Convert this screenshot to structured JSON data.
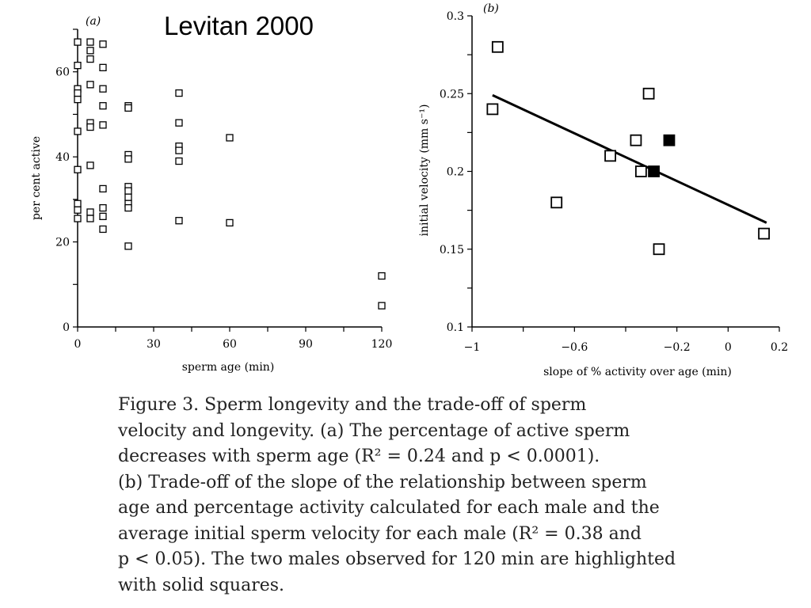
{
  "slide_title": "Levitan 2000",
  "caption": {
    "lines": [
      "Figure 3.  Sperm longevity and the trade-off of sperm",
      "velocity and longevity. (a) The percentage of active sperm",
      "decreases with sperm age (R² = 0.24 and p < 0.0001).",
      "(b) Trade-off of the slope of the relationship between sperm",
      "age and percentage activity calculated for each male and the",
      "average initial sperm velocity for each male (R² = 0.38 and",
      "p < 0.05). The two males observed for 120 min are highlighted",
      "with solid squares."
    ]
  },
  "chart_data": [
    {
      "type": "scatter",
      "panel_label": "(a)",
      "xlabel": "sperm age (min)",
      "ylabel": "per cent active",
      "xlim": [
        0,
        120
      ],
      "ylim": [
        0,
        70
      ],
      "xticks": [
        0,
        30,
        60,
        90,
        120
      ],
      "yticks": [
        0,
        20,
        40,
        60
      ],
      "grid": false,
      "marker": "open-square",
      "points": [
        [
          0,
          67
        ],
        [
          0,
          61.5
        ],
        [
          0,
          56
        ],
        [
          0,
          55
        ],
        [
          0,
          53.5
        ],
        [
          0,
          46
        ],
        [
          0,
          37
        ],
        [
          0,
          29
        ],
        [
          0,
          27.5
        ],
        [
          0,
          25.5
        ],
        [
          5,
          67
        ],
        [
          5,
          65
        ],
        [
          5,
          63
        ],
        [
          5,
          57
        ],
        [
          5,
          48
        ],
        [
          5,
          47
        ],
        [
          5,
          38
        ],
        [
          5,
          27
        ],
        [
          5,
          25.5
        ],
        [
          10,
          66.5
        ],
        [
          10,
          61
        ],
        [
          10,
          56
        ],
        [
          10,
          52
        ],
        [
          10,
          47.5
        ],
        [
          10,
          32.5
        ],
        [
          10,
          28
        ],
        [
          10,
          26
        ],
        [
          10,
          23
        ],
        [
          20,
          52
        ],
        [
          20,
          51.5
        ],
        [
          20,
          40.5
        ],
        [
          20,
          39.5
        ],
        [
          20,
          33
        ],
        [
          20,
          32
        ],
        [
          20,
          30.5
        ],
        [
          20,
          29
        ],
        [
          20,
          28
        ],
        [
          20,
          19
        ],
        [
          40,
          55
        ],
        [
          40,
          48
        ],
        [
          40,
          42.5
        ],
        [
          40,
          41.5
        ],
        [
          40,
          39
        ],
        [
          40,
          25
        ],
        [
          60,
          44.5
        ],
        [
          60,
          24.5
        ],
        [
          120,
          12
        ],
        [
          120,
          5
        ]
      ]
    },
    {
      "type": "scatter",
      "panel_label": "(b)",
      "xlabel": "slope of % activity over age (min)",
      "ylabel": "initial velocity (mm s⁻¹)",
      "xlim": [
        -1,
        0.2
      ],
      "ylim": [
        0.1,
        0.3
      ],
      "xticks": [
        -1,
        -0.6,
        -0.2,
        0,
        0.2
      ],
      "xtick_labels": [
        "−1",
        "−0.6",
        "−0.2",
        "0",
        "0.2"
      ],
      "yticks": [
        0.1,
        0.15,
        0.2,
        0.25,
        0.3
      ],
      "ytick_labels": [
        "0.1",
        "0.15",
        "0.2",
        "0.25",
        "0.3"
      ],
      "grid": false,
      "series": [
        {
          "marker": "open-square",
          "points": [
            [
              -0.92,
              0.24
            ],
            [
              -0.9,
              0.28
            ],
            [
              -0.67,
              0.18
            ],
            [
              -0.46,
              0.21
            ],
            [
              -0.36,
              0.22
            ],
            [
              -0.34,
              0.2
            ],
            [
              -0.31,
              0.25
            ],
            [
              -0.27,
              0.15
            ],
            [
              0.14,
              0.16
            ]
          ]
        },
        {
          "marker": "solid-square",
          "highlight": true,
          "points": [
            [
              -0.29,
              0.2
            ],
            [
              -0.23,
              0.22
            ]
          ]
        }
      ],
      "fit_line": {
        "x": [
          -0.92,
          0.15
        ],
        "y": [
          0.249,
          0.167
        ]
      }
    }
  ]
}
